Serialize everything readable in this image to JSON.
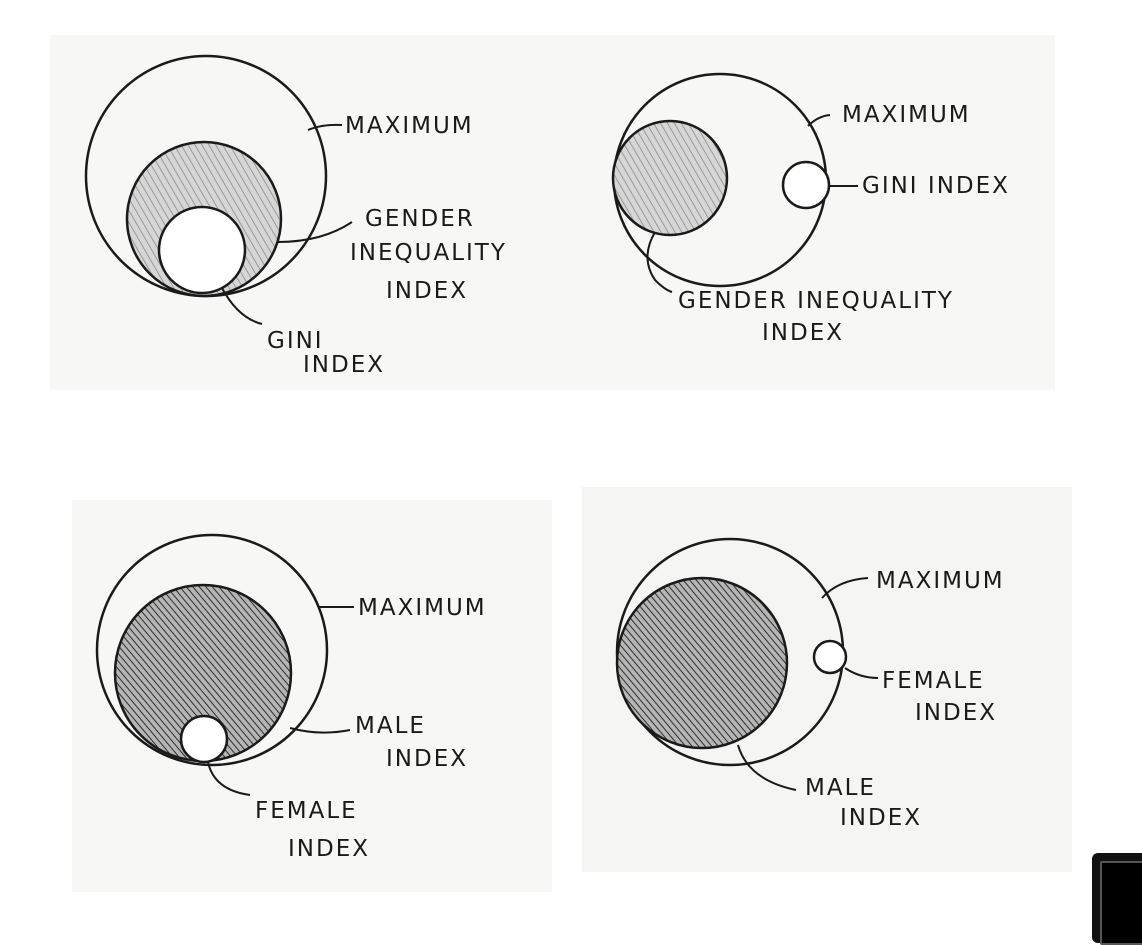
{
  "colors": {
    "paper": "#f7f7f6",
    "ink": "#1a1a1a",
    "hatch_light": "#bdbdbd",
    "hatch_dark": "#4a4a4a"
  },
  "diagrams": [
    {
      "labels": {
        "maximum": "MAXIMUM",
        "gii_1": "GENDER",
        "gii_2": "INEQUALITY",
        "gii_3": "INDEX",
        "gini_1": "GINI",
        "gini_2": "INDEX"
      }
    },
    {
      "labels": {
        "maximum": "MAXIMUM",
        "gini": "GINI INDEX",
        "gii_1": "GENDER INEQUALITY",
        "gii_2": "INDEX"
      }
    },
    {
      "labels": {
        "maximum": "MAXIMUM",
        "male_1": "MALE",
        "male_2": "INDEX",
        "female_1": "FEMALE",
        "female_2": "INDEX"
      }
    },
    {
      "labels": {
        "maximum": "MAXIMUM",
        "female_1": "FEMALE",
        "female_2": "INDEX",
        "male_1": "MALE",
        "male_2": "INDEX"
      }
    }
  ]
}
